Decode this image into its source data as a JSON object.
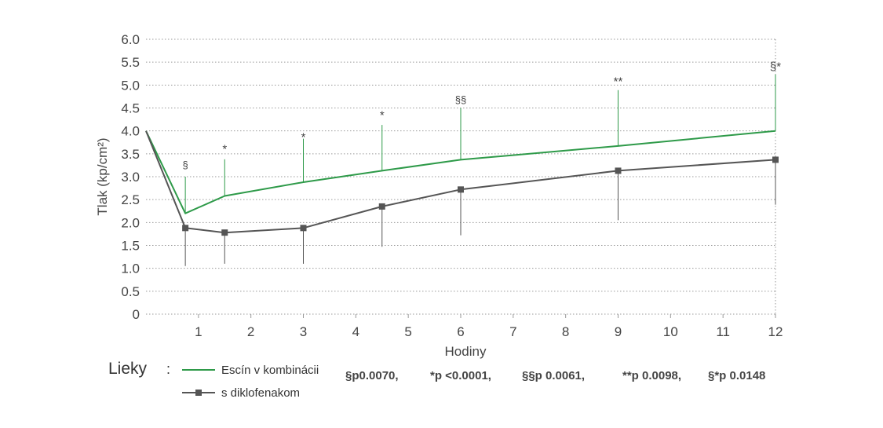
{
  "chart_data": {
    "type": "line",
    "xlabel": "Hodiny",
    "ylabel": "Tlak (kp/cm²)",
    "x_ticks": [
      "1",
      "2",
      "3",
      "4",
      "5",
      "6",
      "7",
      "8",
      "9",
      "10",
      "11",
      "12"
    ],
    "y_ticks": [
      "0",
      "0.5",
      "1.0",
      "1.5",
      "2.0",
      "2.5",
      "3.0",
      "3.5",
      "4.0",
      "4.5",
      "5.0",
      "5.5",
      "6.0"
    ],
    "xlim": [
      0,
      12
    ],
    "ylim": [
      0,
      6
    ],
    "grid": true,
    "series": [
      {
        "name": "Escín v kombinácii",
        "color": "#2e9a49",
        "marker": "none",
        "x": [
          0,
          0.75,
          1.5,
          3,
          4.5,
          6,
          9,
          12
        ],
        "y": [
          4.0,
          2.2,
          2.58,
          2.88,
          3.13,
          3.37,
          3.67,
          4.0
        ],
        "error_up": [
          0,
          0.8,
          0.8,
          0.95,
          1.0,
          1.13,
          1.22,
          1.23
        ]
      },
      {
        "name": "s diklofenakom",
        "color": "#555555",
        "marker": "square",
        "x": [
          0,
          0.75,
          1.5,
          3,
          4.5,
          6,
          9,
          12
        ],
        "y": [
          4.0,
          1.88,
          1.78,
          1.88,
          2.35,
          2.72,
          3.13,
          3.37
        ],
        "error_down": [
          0,
          0.83,
          0.68,
          0.78,
          0.88,
          1.0,
          1.08,
          0.98
        ]
      }
    ],
    "significance": [
      {
        "x": 0.75,
        "label": "§",
        "y": 3.18
      },
      {
        "x": 1.5,
        "label": "*",
        "y": 3.52
      },
      {
        "x": 3,
        "label": "*",
        "y": 3.78
      },
      {
        "x": 4.5,
        "label": "*",
        "y": 4.26
      },
      {
        "x": 6,
        "label": "§§",
        "y": 4.6
      },
      {
        "x": 9,
        "label": "**",
        "y": 5.0
      },
      {
        "x": 12,
        "label": "§*",
        "y": 5.32
      }
    ],
    "legend": {
      "title": "Lieky",
      "colon": ":",
      "items": [
        "Escín v kombinácii",
        "s diklofenakom"
      ],
      "position": "bottom-left"
    },
    "p_values": [
      "§p0.0070,",
      "*p <0.0001,",
      "§§p 0.0061,",
      "**p 0.0098,",
      "§*p 0.0148"
    ]
  }
}
